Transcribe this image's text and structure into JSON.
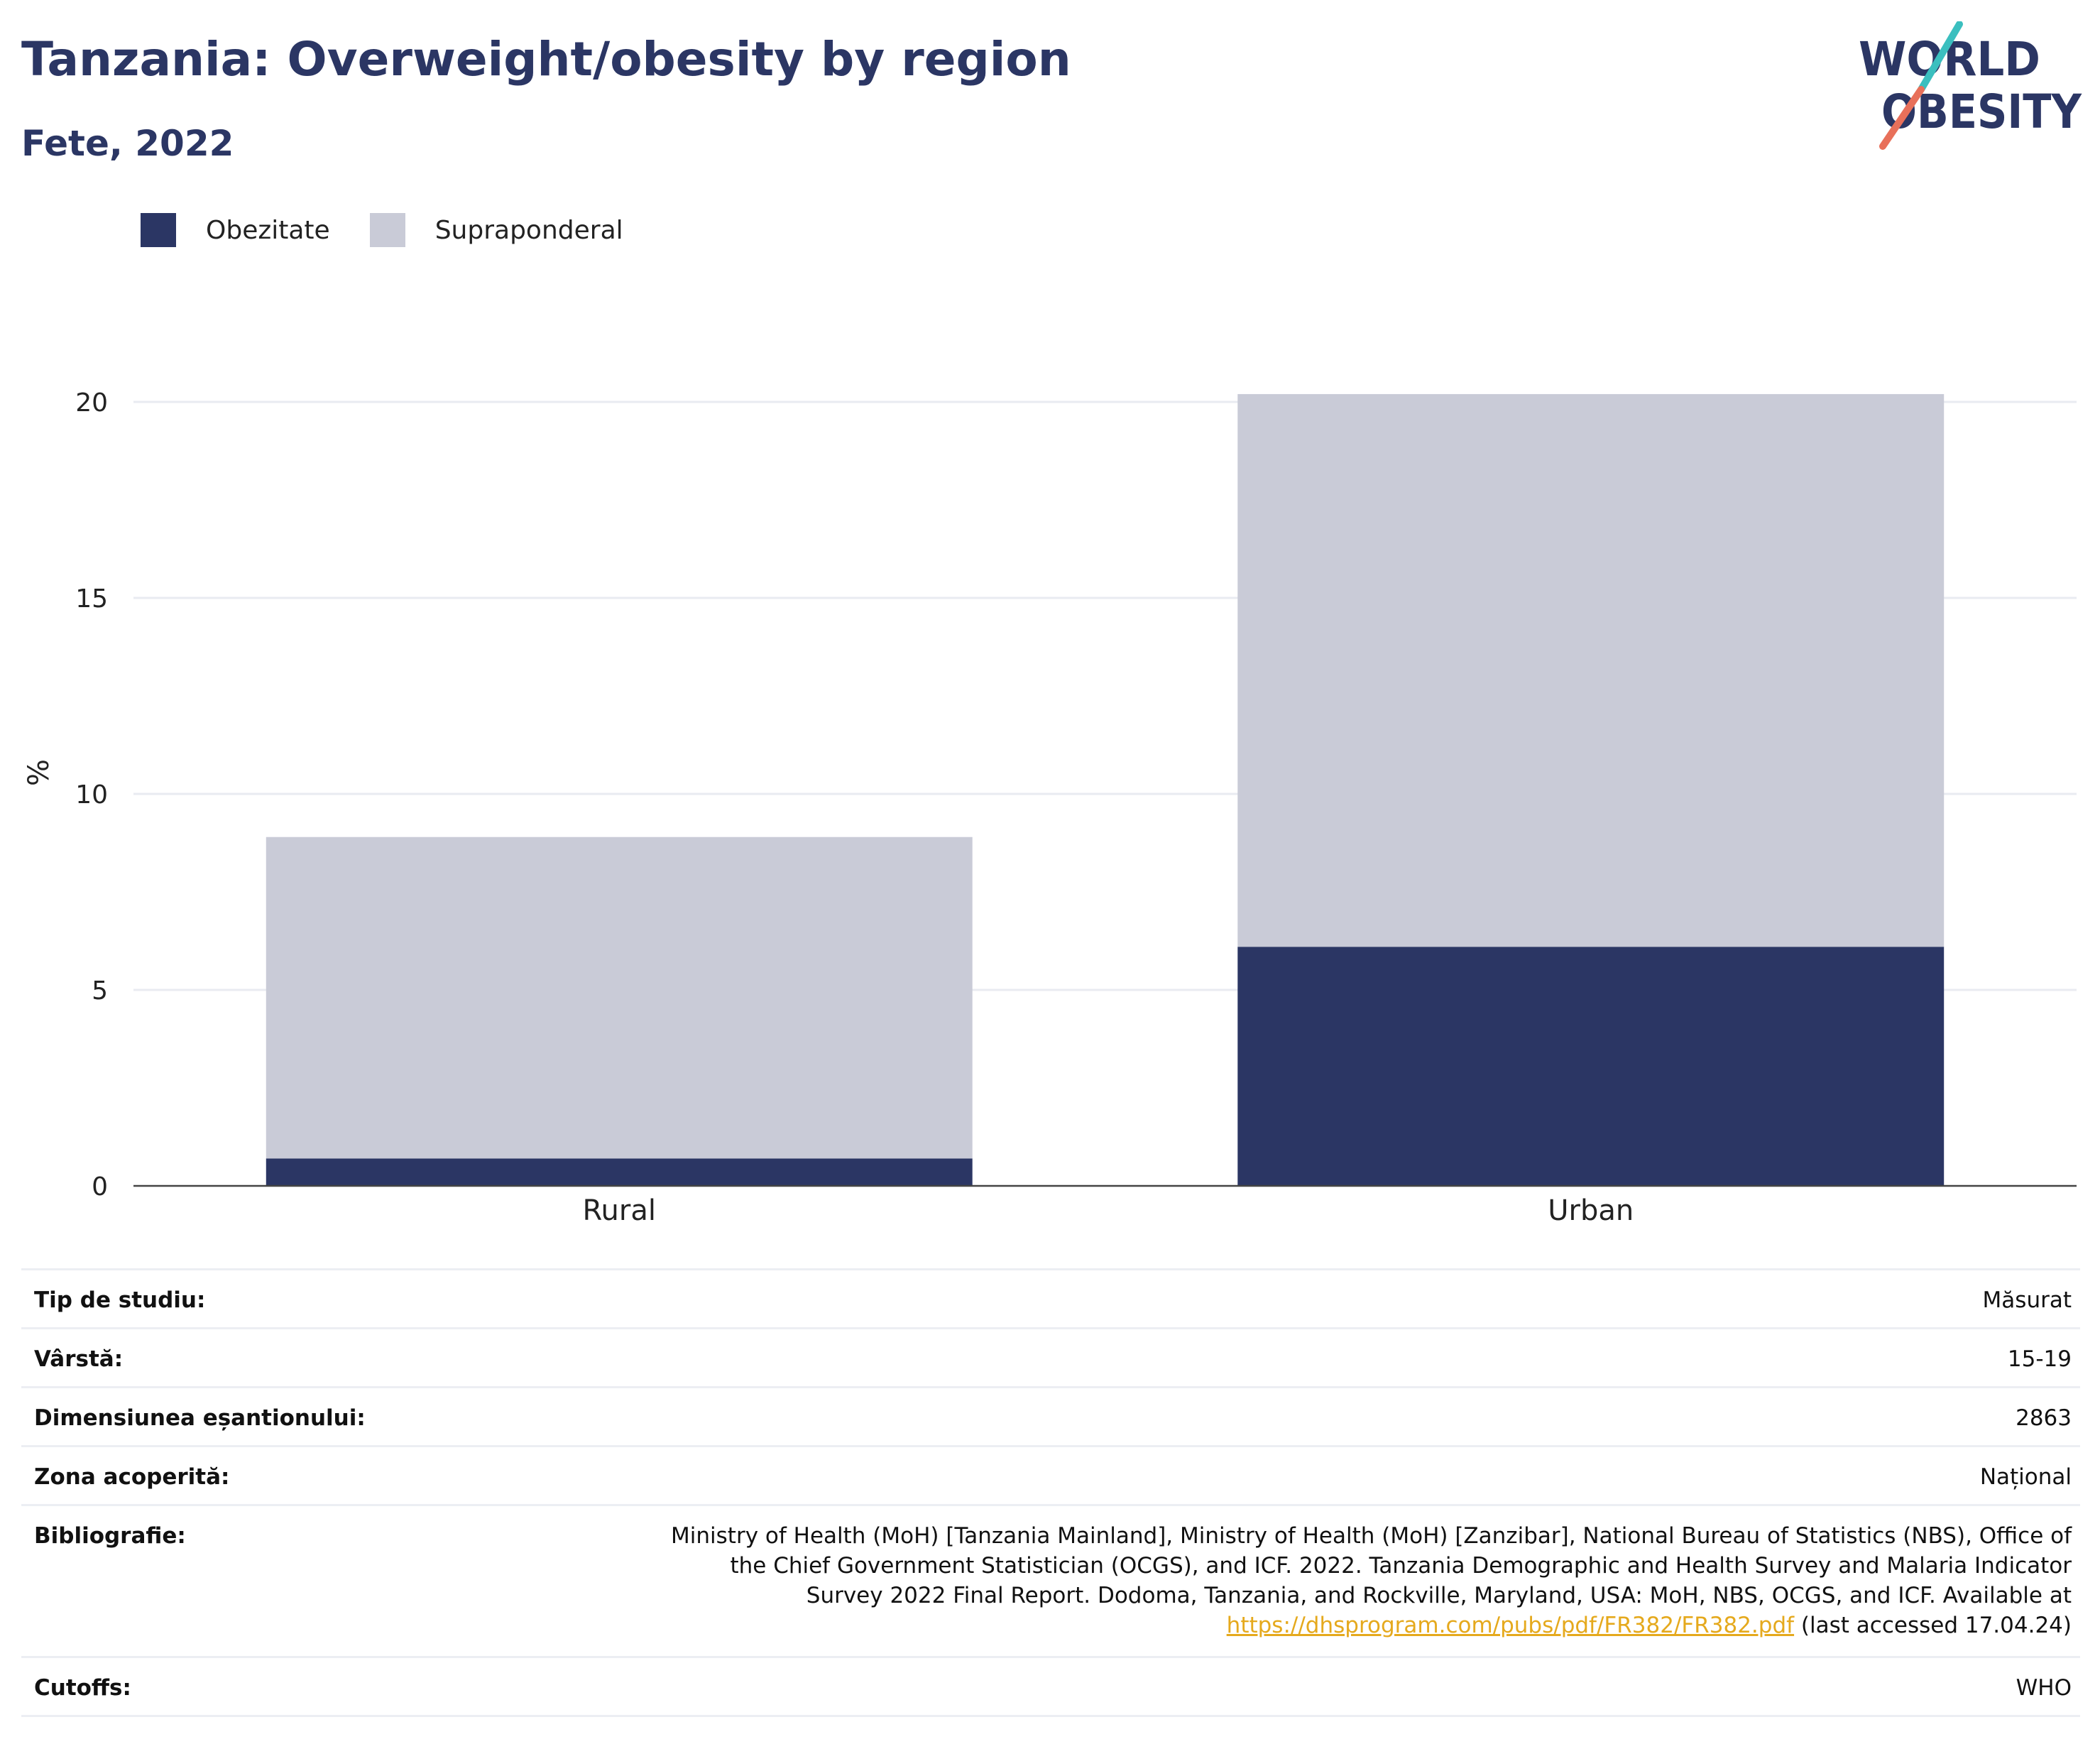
{
  "header": {
    "title": "Tanzania: Overweight/obesity by region",
    "subtitle": "Fete, 2022"
  },
  "logo": {
    "text_line1": "WORLD",
    "text_line2": "OBESITY",
    "colors": {
      "text": "#2b3664",
      "slash_top": "#3bbfbf",
      "slash_bottom": "#e8705a"
    }
  },
  "colors": {
    "obesity": "#2b3664",
    "overweight": "#c9cbd7",
    "grid": "#e9ebf1",
    "axis": "#444444"
  },
  "chart_data": {
    "type": "bar",
    "stacked": true,
    "categories": [
      "Rural",
      "Urban"
    ],
    "series": [
      {
        "name": "Obezitate",
        "values": [
          0.7,
          6.1
        ]
      },
      {
        "name": "Supraponderal",
        "values": [
          8.2,
          14.1
        ]
      }
    ],
    "ylabel": "%",
    "xlabel": "",
    "ylim": [
      0,
      20
    ],
    "yticks": [
      0,
      5,
      10,
      15,
      20
    ],
    "grid": true,
    "legend_position": "top-left"
  },
  "meta": {
    "study_type": {
      "label": "Tip de studiu:",
      "value": "Măsurat"
    },
    "age": {
      "label": "Vârstă:",
      "value": "15-19"
    },
    "sample_size": {
      "label": "Dimensiunea eșantionului:",
      "value": "2863"
    },
    "area": {
      "label": "Zona acoperită:",
      "value": "Național"
    },
    "bibliography": {
      "label": "Bibliografie:",
      "text": "Ministry of Health (MoH) [Tanzania Mainland], Ministry of Health (MoH) [Zanzibar], National Bureau of Statistics (NBS), Office of the Chief Government Statistician (OCGS), and ICF. 2022. Tanzania Demographic and Health Survey and Malaria Indicator Survey 2022 Final Report. Dodoma, Tanzania, and Rockville, Maryland, USA: MoH, NBS, OCGS, and ICF. Available at",
      "link": "https://dhsprogram.com/pubs/pdf/FR382/FR382.pdf",
      "suffix": "(last accessed 17.04.24)"
    },
    "cutoffs": {
      "label": "Cutoffs:",
      "value": "WHO"
    }
  }
}
